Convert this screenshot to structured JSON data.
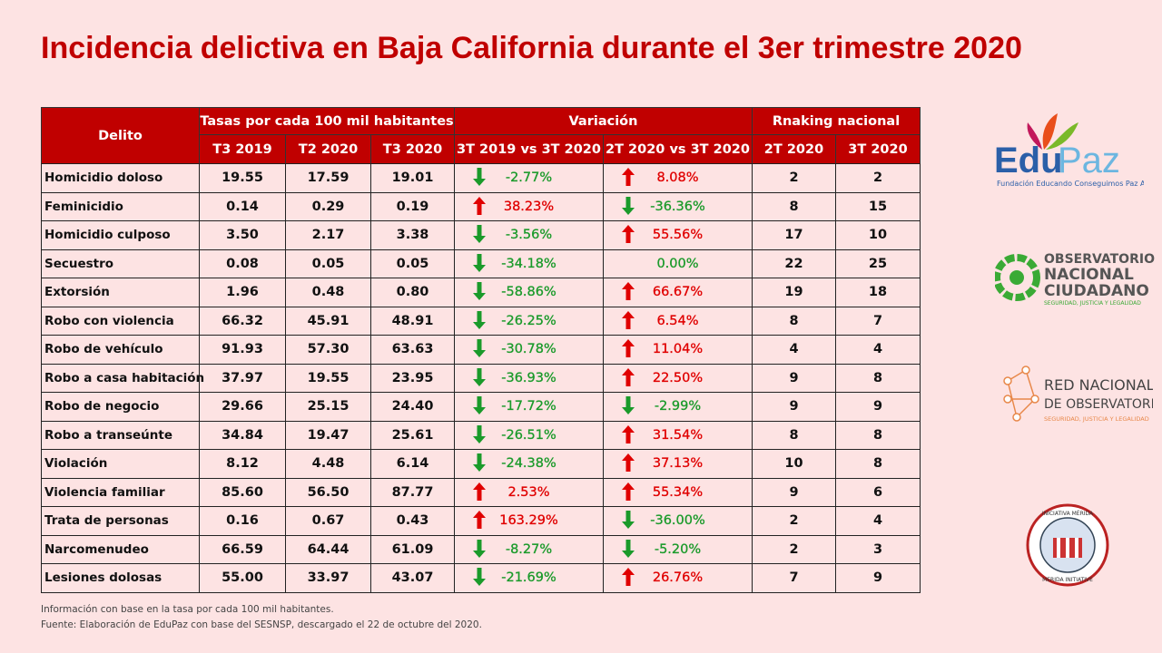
{
  "header": {
    "title": "Incidencia delictiva en Baja California durante el 3er trimestre 2020"
  },
  "table": {
    "columns": {
      "delito": "Delito",
      "group1": "Tasas por cada 100 mil habitantes",
      "group2": "Variación",
      "group3": "Rnaking nacional",
      "sub": [
        "T3 2019",
        "T2 2020",
        "T3 2020",
        "3T 2019 vs 3T 2020",
        "2T 2020 vs 3T 2020",
        "2T 2020",
        "3T 2020"
      ]
    },
    "rows": [
      [
        "Homicidio doloso",
        "19.55",
        "17.59",
        "19.01",
        "-2.77%",
        "8.08%",
        "2",
        "2"
      ],
      [
        "Feminicidio",
        "0.14",
        "0.29",
        "0.19",
        "38.23%",
        "-36.36%",
        "8",
        "15"
      ],
      [
        "Homicidio culposo",
        "3.50",
        "2.17",
        "3.38",
        "-3.56%",
        "55.56%",
        "17",
        "10"
      ],
      [
        "Secuestro",
        "0.08",
        "0.05",
        "0.05",
        "-34.18%",
        "0.00%",
        "22",
        "25"
      ],
      [
        "Extorsión",
        "1.96",
        "0.48",
        "0.80",
        "-58.86%",
        "66.67%",
        "19",
        "18"
      ],
      [
        "Robo con violencia",
        "66.32",
        "45.91",
        "48.91",
        "-26.25%",
        "6.54%",
        "8",
        "7"
      ],
      [
        "Robo de vehículo",
        "91.93",
        "57.30",
        "63.63",
        "-30.78%",
        "11.04%",
        "4",
        "4"
      ],
      [
        "Robo a casa habitación",
        "37.97",
        "19.55",
        "23.95",
        "-36.93%",
        "22.50%",
        "9",
        "8"
      ],
      [
        "Robo de negocio",
        "29.66",
        "25.15",
        "24.40",
        "-17.72%",
        "-2.99%",
        "9",
        "9"
      ],
      [
        "Robo a transeúnte",
        "34.84",
        "19.47",
        "25.61",
        "-26.51%",
        "31.54%",
        "8",
        "8"
      ],
      [
        "Violación",
        "8.12",
        "4.48",
        "6.14",
        "-24.38%",
        "37.13%",
        "10",
        "8"
      ],
      [
        "Violencia familiar",
        "85.60",
        "56.50",
        "87.77",
        "2.53%",
        "55.34%",
        "9",
        "6"
      ],
      [
        "Trata de personas",
        "0.16",
        "0.67",
        "0.43",
        "163.29%",
        "-36.00%",
        "2",
        "4"
      ],
      [
        "Narcomenudeo",
        "66.59",
        "64.44",
        "61.09",
        "-8.27%",
        "-5.20%",
        "2",
        "3"
      ],
      [
        "Lesiones dolosas",
        "55.00",
        "33.97",
        "43.07",
        "-21.69%",
        "26.76%",
        "7",
        "9"
      ]
    ]
  },
  "notes": [
    "Información con base en la tasa por cada 100 mil habitantes.",
    "Fuente:  Elaboración de EduPaz con base del SESNSP,  descargado el 22 de octubre del 2020."
  ],
  "logos": {
    "edupaz": {
      "edu": "Edu",
      "paz": "Paz",
      "sub": "Fundación Educando Conseguimos Paz A.C."
    },
    "onc": {
      "l1": "OBSERVATORIO",
      "l2": "NACIONAL",
      "l3": "CIUDADANO",
      "l4": "SEGURIDAD, JUSTICIA Y LEGALIDAD"
    },
    "rno": {
      "l1": "RED NACIONAL",
      "l2": "DE OBSERVATORIOS",
      "l3": "SEGURIDAD, JUSTICIA Y LEGALIDAD"
    },
    "merida": {
      "top": "INICIATIVA MÉRIDA",
      "bottom": "MERIDA INITIATIVE"
    }
  }
}
